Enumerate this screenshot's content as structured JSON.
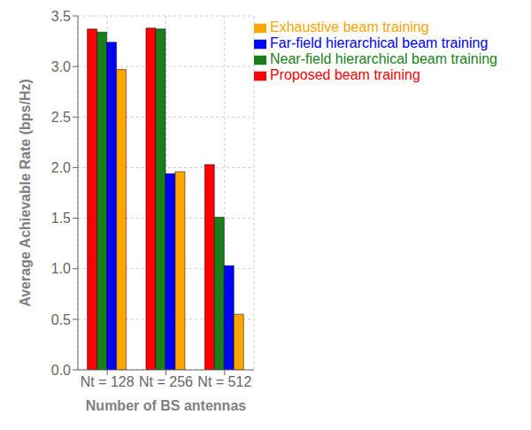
{
  "chart_data": {
    "type": "bar",
    "categories": [
      "Nt = 128",
      "Nt = 256",
      "Nt = 512"
    ],
    "series": [
      {
        "name": "Proposed beam training",
        "color": "#FF0000",
        "values": [
          3.37,
          3.38,
          2.03
        ]
      },
      {
        "name": "Near-field hierarchical beam training",
        "color": "#1A7F1A",
        "values": [
          3.34,
          3.37,
          1.51
        ]
      },
      {
        "name": "Far-field hierarchical beam training",
        "color": "#0000FF",
        "values": [
          3.24,
          1.94,
          1.03
        ]
      },
      {
        "name": "Exhaustive beam training",
        "color": "#FFA500",
        "values": [
          2.97,
          1.96,
          0.55
        ]
      }
    ],
    "xlabel": "Number of BS antennas",
    "ylabel": "Average Achievable Rate (bps/Hz)",
    "ylim": [
      0,
      3.5
    ],
    "yticks": [
      {
        "value": 0,
        "label": "0.0"
      },
      0.5,
      {
        "value": 1.0,
        "label": "1.0"
      },
      1.5,
      {
        "value": 2.0,
        "label": "2.0"
      },
      2.5,
      {
        "value": 3.0,
        "label": "3.0"
      },
      3.5
    ],
    "grid": true,
    "legend": "upper right"
  }
}
